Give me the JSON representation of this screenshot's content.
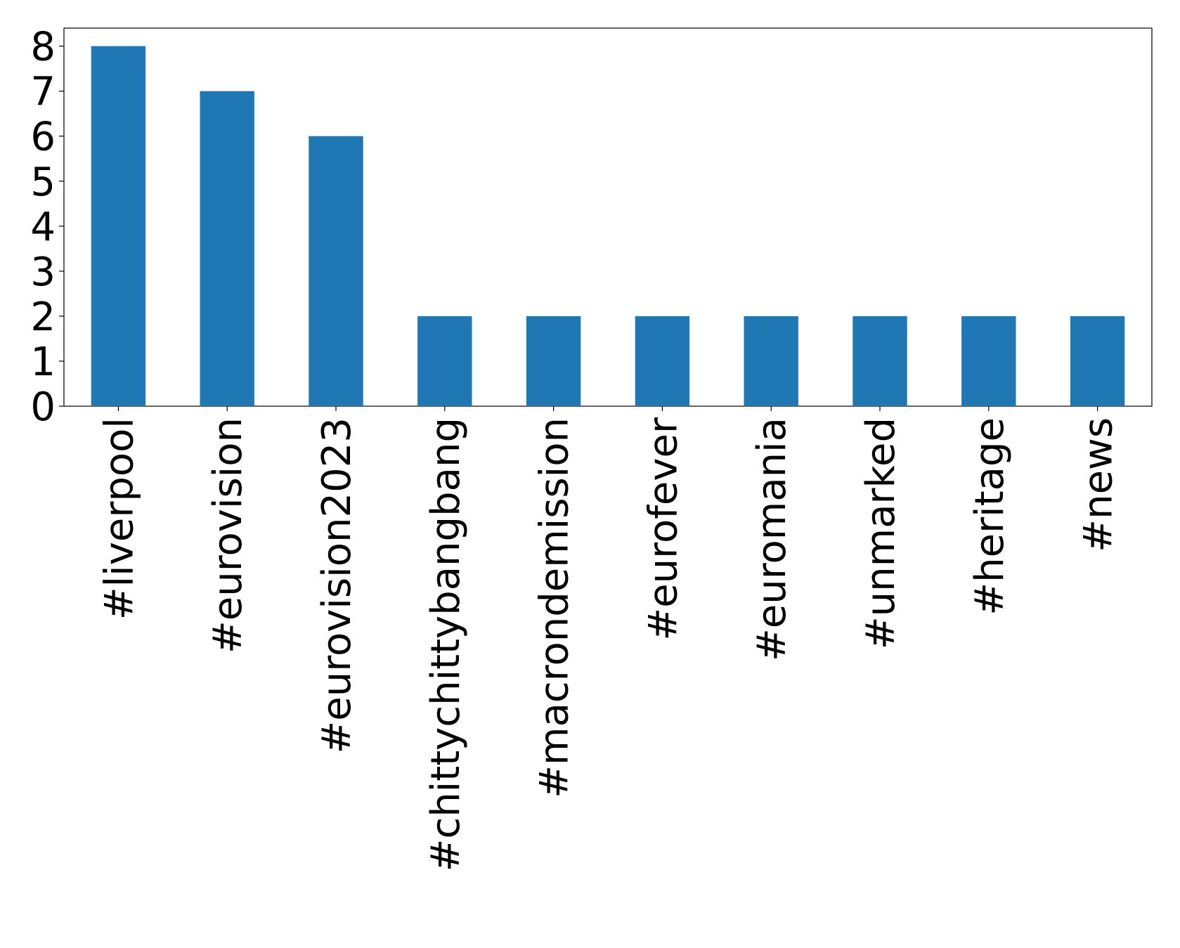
{
  "chart_data": {
    "type": "bar",
    "categories": [
      "#liverpool",
      "#eurovision",
      "#eurovision2023",
      "#chittychittybangbang",
      "#macrondemission",
      "#eurofever",
      "#euromania",
      "#unmarked",
      "#heritage",
      "#news"
    ],
    "values": [
      8,
      7,
      6,
      2,
      2,
      2,
      2,
      2,
      2,
      2
    ],
    "color": "#1f77b4",
    "ylim": [
      0,
      8.4
    ],
    "yticks": [
      0,
      1,
      2,
      3,
      4,
      5,
      6,
      7,
      8
    ],
    "grid": false
  }
}
